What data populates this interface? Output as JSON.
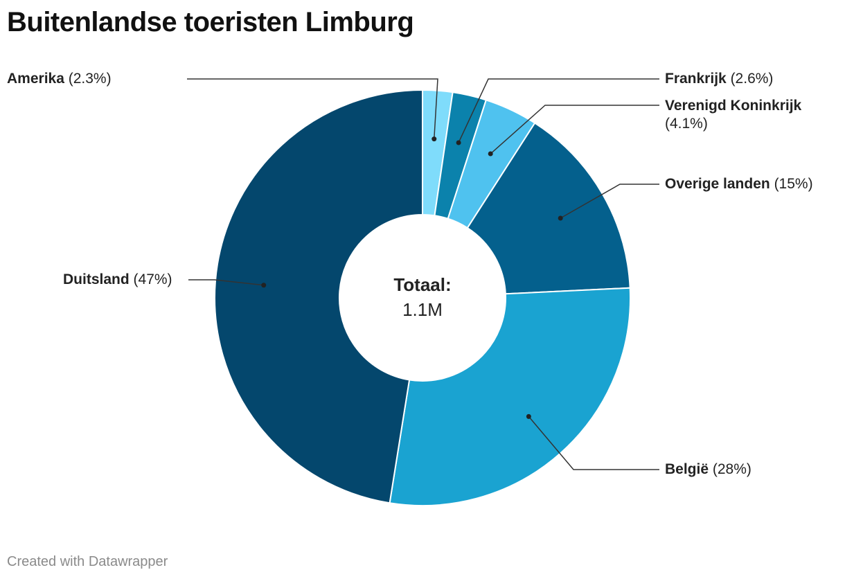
{
  "chart_title": "Buitenlandse toeristen Limburg",
  "center": {
    "label": "Totaal:",
    "value": "1.1M"
  },
  "footer": "Created with Datawrapper",
  "chart_data": {
    "type": "pie",
    "donut": true,
    "title": "Buitenlandse toeristen Limburg",
    "total_label": "Totaal:",
    "total_value": "1.1M",
    "slices": [
      {
        "name": "Amerika",
        "pct_label": "(2.3%)",
        "value": 2.3,
        "color": "#7fdcfb"
      },
      {
        "name": "Frankrijk",
        "pct_label": "(2.6%)",
        "value": 2.6,
        "color": "#0b82ac"
      },
      {
        "name": "Verenigd Koninkrijk",
        "pct_label": "(4.1%)",
        "value": 4.1,
        "color": "#4fc2ef"
      },
      {
        "name": "Overige landen",
        "pct_label": "(15%)",
        "value": 15,
        "color": "#04608d"
      },
      {
        "name": "België",
        "pct_label": "(28%)",
        "value": 28,
        "color": "#1aa3d1"
      },
      {
        "name": "Duitsland",
        "pct_label": "(47%)",
        "value": 47,
        "color": "#04476d"
      }
    ]
  }
}
